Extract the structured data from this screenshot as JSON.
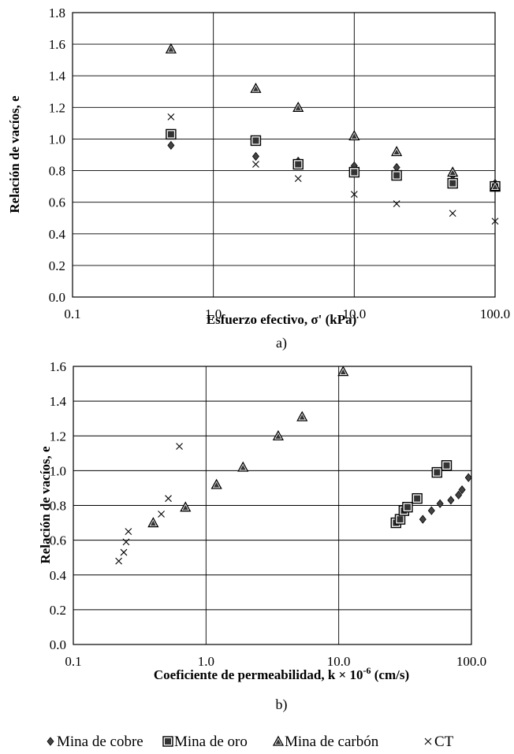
{
  "chart_data": [
    {
      "type": "scatter",
      "caption": "a)",
      "xlabel": "Esfuerzo efectivo, σ' (kPa)",
      "ylabel": "Relación de vacíos, e",
      "xscale": "log",
      "xlim": [
        0.1,
        100
      ],
      "ylim": [
        0,
        1.8
      ],
      "xticks": [
        0.1,
        1,
        10,
        100
      ],
      "xtick_labels": [
        "0.1",
        "1.0",
        "10.0",
        "100.0"
      ],
      "yticks": [
        0,
        0.2,
        0.4,
        0.6,
        0.8,
        1.0,
        1.2,
        1.4,
        1.6,
        1.8
      ],
      "ytick_labels": [
        "0.0",
        "0.2",
        "0.4",
        "0.6",
        "0.8",
        "1.0",
        "1.2",
        "1.4",
        "1.6",
        "1.8"
      ],
      "grid": "vertical at decades, horizontal at every y tick",
      "series": [
        {
          "name": "Mina de cobre",
          "marker": "diamond",
          "points": [
            [
              0.5,
              0.96
            ],
            [
              2,
              0.89
            ],
            [
              4,
              0.86
            ],
            [
              10,
              0.83
            ],
            [
              20,
              0.82
            ],
            [
              50,
              0.77
            ],
            [
              100,
              0.72
            ]
          ]
        },
        {
          "name": "Mina de oro",
          "marker": "square",
          "points": [
            [
              0.5,
              1.03
            ],
            [
              2,
              0.99
            ],
            [
              4,
              0.84
            ],
            [
              10,
              0.79
            ],
            [
              20,
              0.77
            ],
            [
              50,
              0.72
            ],
            [
              100,
              0.7
            ]
          ]
        },
        {
          "name": "Mina de carbón",
          "marker": "triangle",
          "points": [
            [
              0.5,
              1.57
            ],
            [
              2,
              1.32
            ],
            [
              4,
              1.2
            ],
            [
              10,
              1.02
            ],
            [
              20,
              0.92
            ],
            [
              50,
              0.79
            ],
            [
              100,
              0.7
            ]
          ]
        },
        {
          "name": "CT",
          "marker": "cross",
          "points": [
            [
              0.5,
              1.14
            ],
            [
              2,
              0.84
            ],
            [
              4,
              0.75
            ],
            [
              10,
              0.65
            ],
            [
              20,
              0.59
            ],
            [
              50,
              0.53
            ],
            [
              100,
              0.48
            ]
          ]
        }
      ]
    },
    {
      "type": "scatter",
      "caption": "b)",
      "xlabel_main": "Coeficiente de permeabilidad, k × 10",
      "xlabel_exp": "-6",
      "xlabel_unit": " (cm/s)",
      "ylabel": "Relación de vacíos, e",
      "xscale": "log",
      "xlim": [
        0.1,
        100
      ],
      "ylim": [
        0,
        1.6
      ],
      "xticks": [
        0.1,
        1,
        10,
        100
      ],
      "xtick_labels": [
        "0.1",
        "1.0",
        "10.0",
        "100.0"
      ],
      "yticks": [
        0,
        0.2,
        0.4,
        0.6,
        0.8,
        1.0,
        1.2,
        1.4,
        1.6
      ],
      "ytick_labels": [
        "0.0",
        "0.2",
        "0.4",
        "0.6",
        "0.8",
        "1.0",
        "1.2",
        "1.4",
        "1.6"
      ],
      "grid": "vertical at decades, horizontal at every y tick",
      "series": [
        {
          "name": "Mina de cobre",
          "marker": "diamond",
          "points": [
            [
              43,
              0.72
            ],
            [
              50,
              0.77
            ],
            [
              58,
              0.81
            ],
            [
              70,
              0.83
            ],
            [
              80,
              0.86
            ],
            [
              85,
              0.89
            ],
            [
              95,
              0.96
            ]
          ]
        },
        {
          "name": "Mina de oro",
          "marker": "square",
          "points": [
            [
              27,
              0.7
            ],
            [
              29,
              0.72
            ],
            [
              31,
              0.77
            ],
            [
              33,
              0.79
            ],
            [
              39,
              0.84
            ],
            [
              55,
              0.99
            ],
            [
              65,
              1.03
            ]
          ]
        },
        {
          "name": "Mina de carbón",
          "marker": "triangle",
          "points": [
            [
              0.4,
              0.7
            ],
            [
              0.7,
              0.79
            ],
            [
              1.2,
              0.92
            ],
            [
              1.9,
              1.02
            ],
            [
              3.5,
              1.2
            ],
            [
              5.3,
              1.31
            ],
            [
              10.8,
              1.57
            ]
          ]
        },
        {
          "name": "CT",
          "marker": "cross",
          "points": [
            [
              0.22,
              0.48
            ],
            [
              0.24,
              0.53
            ],
            [
              0.25,
              0.59
            ],
            [
              0.26,
              0.65
            ],
            [
              0.46,
              0.75
            ],
            [
              0.52,
              0.84
            ],
            [
              0.63,
              1.14
            ]
          ]
        }
      ]
    }
  ],
  "legend": {
    "placement": "bottom-center",
    "items": [
      {
        "label": "Mina de cobre",
        "marker": "diamond"
      },
      {
        "label": "Mina de oro",
        "marker": "square"
      },
      {
        "label": "Mina de carbón",
        "marker": "triangle"
      },
      {
        "label": "CT",
        "marker": "cross"
      }
    ]
  }
}
